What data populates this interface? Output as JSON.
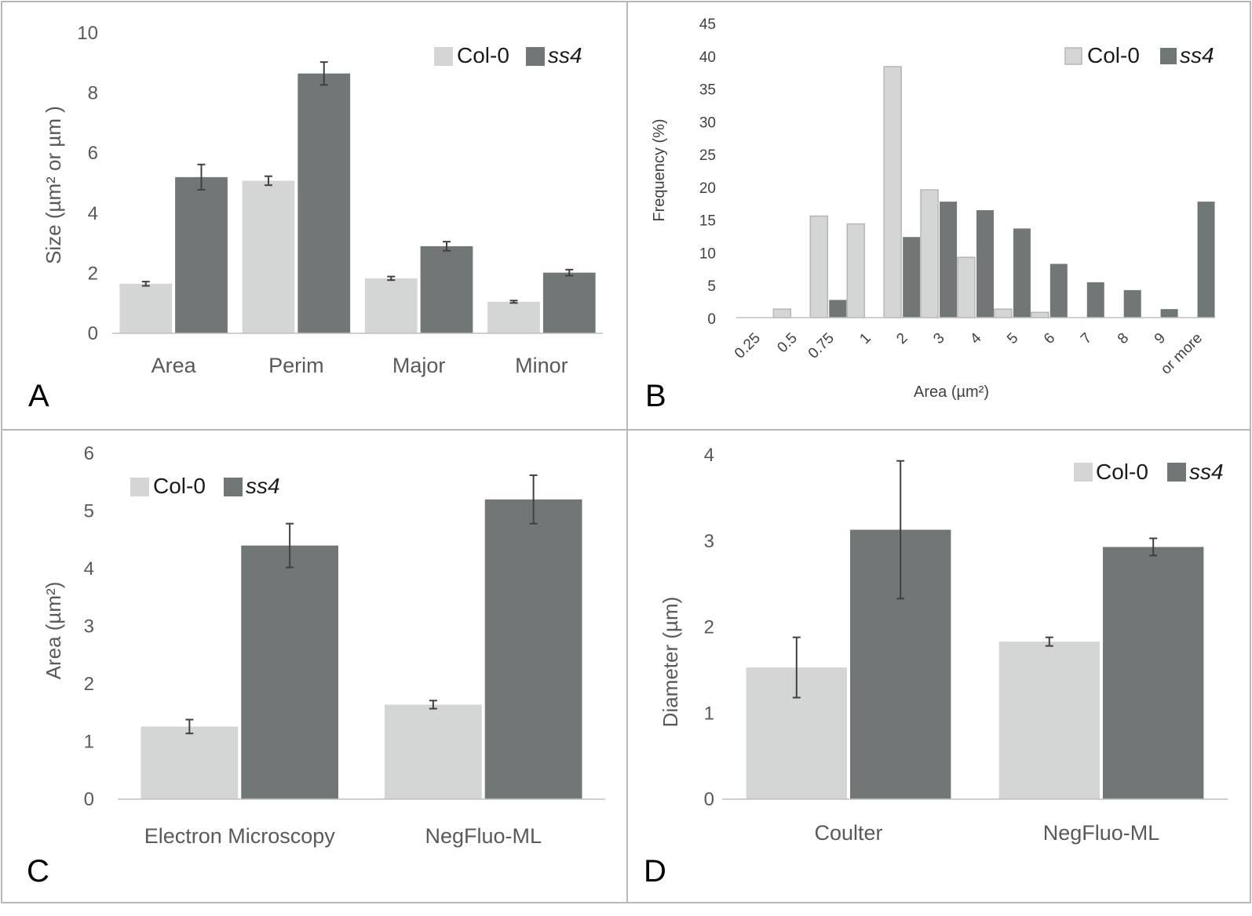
{
  "colors": {
    "col0": "#d4d5d5",
    "ss4": "#717677",
    "col0_outline_hist": "#b5b5b5"
  },
  "legend": {
    "col0_label": "Col-0",
    "ss4_label": "ss4"
  },
  "chart_data": [
    {
      "panel": "A",
      "type": "bar",
      "title": "",
      "xlabel": "",
      "ylabel": "Size (µm² or µm )",
      "ylim": [
        0,
        10
      ],
      "yticks": [
        0,
        2,
        4,
        6,
        8,
        10
      ],
      "categories": [
        "Area",
        "Perim",
        "Major",
        "Minor"
      ],
      "legend_position": "top-right",
      "series": [
        {
          "name": "Col-0",
          "values": [
            1.65,
            5.08,
            1.83,
            1.05
          ],
          "errors": [
            0.07,
            0.15,
            0.06,
            0.04
          ]
        },
        {
          "name": "ss4",
          "values": [
            5.2,
            8.65,
            2.9,
            2.02
          ],
          "errors": [
            0.42,
            0.38,
            0.15,
            0.1
          ]
        }
      ]
    },
    {
      "panel": "B",
      "type": "bar",
      "title": "",
      "xlabel": "Area (µm²)",
      "ylabel": "Frequency (%)",
      "ylim": [
        0,
        45
      ],
      "yticks": [
        0,
        5,
        10,
        15,
        20,
        25,
        30,
        35,
        40,
        45
      ],
      "categories": [
        "0.25",
        "0.5",
        "0.75",
        "1",
        "2",
        "3",
        "4",
        "5",
        "6",
        "7",
        "8",
        "9",
        "or more"
      ],
      "legend_position": "top-right",
      "series": [
        {
          "name": "Col-0",
          "values": [
            0,
            1.3,
            15.5,
            14.3,
            38.3,
            19.5,
            9.2,
            1.3,
            0.8,
            0,
            0,
            0,
            0
          ]
        },
        {
          "name": "ss4",
          "values": [
            0,
            0,
            2.7,
            0,
            12.3,
            17.7,
            16.4,
            13.6,
            8.2,
            5.4,
            4.2,
            1.3,
            17.7
          ]
        }
      ]
    },
    {
      "panel": "C",
      "type": "bar",
      "title": "",
      "xlabel": "",
      "ylabel": "Area (µm²)",
      "ylim": [
        0,
        6
      ],
      "yticks": [
        0,
        1,
        2,
        3,
        4,
        5,
        6
      ],
      "categories": [
        "Electron Microscopy",
        "NegFluo-ML"
      ],
      "legend_position": "top-left",
      "series": [
        {
          "name": "Col-0",
          "values": [
            1.26,
            1.64
          ],
          "errors": [
            0.12,
            0.07
          ]
        },
        {
          "name": "ss4",
          "values": [
            4.4,
            5.2
          ],
          "errors": [
            0.38,
            0.42
          ]
        }
      ]
    },
    {
      "panel": "D",
      "type": "bar",
      "title": "",
      "xlabel": "",
      "ylabel": "Diameter (µm)",
      "ylim": [
        0,
        4
      ],
      "yticks": [
        0,
        1,
        2,
        3,
        4
      ],
      "categories": [
        "Coulter",
        "NegFluo-ML"
      ],
      "legend_position": "top-right",
      "series": [
        {
          "name": "Col-0",
          "values": [
            1.53,
            1.83
          ],
          "errors": [
            0.35,
            0.05
          ]
        },
        {
          "name": "ss4",
          "values": [
            3.13,
            2.93
          ],
          "errors": [
            0.8,
            0.1
          ]
        }
      ]
    }
  ]
}
